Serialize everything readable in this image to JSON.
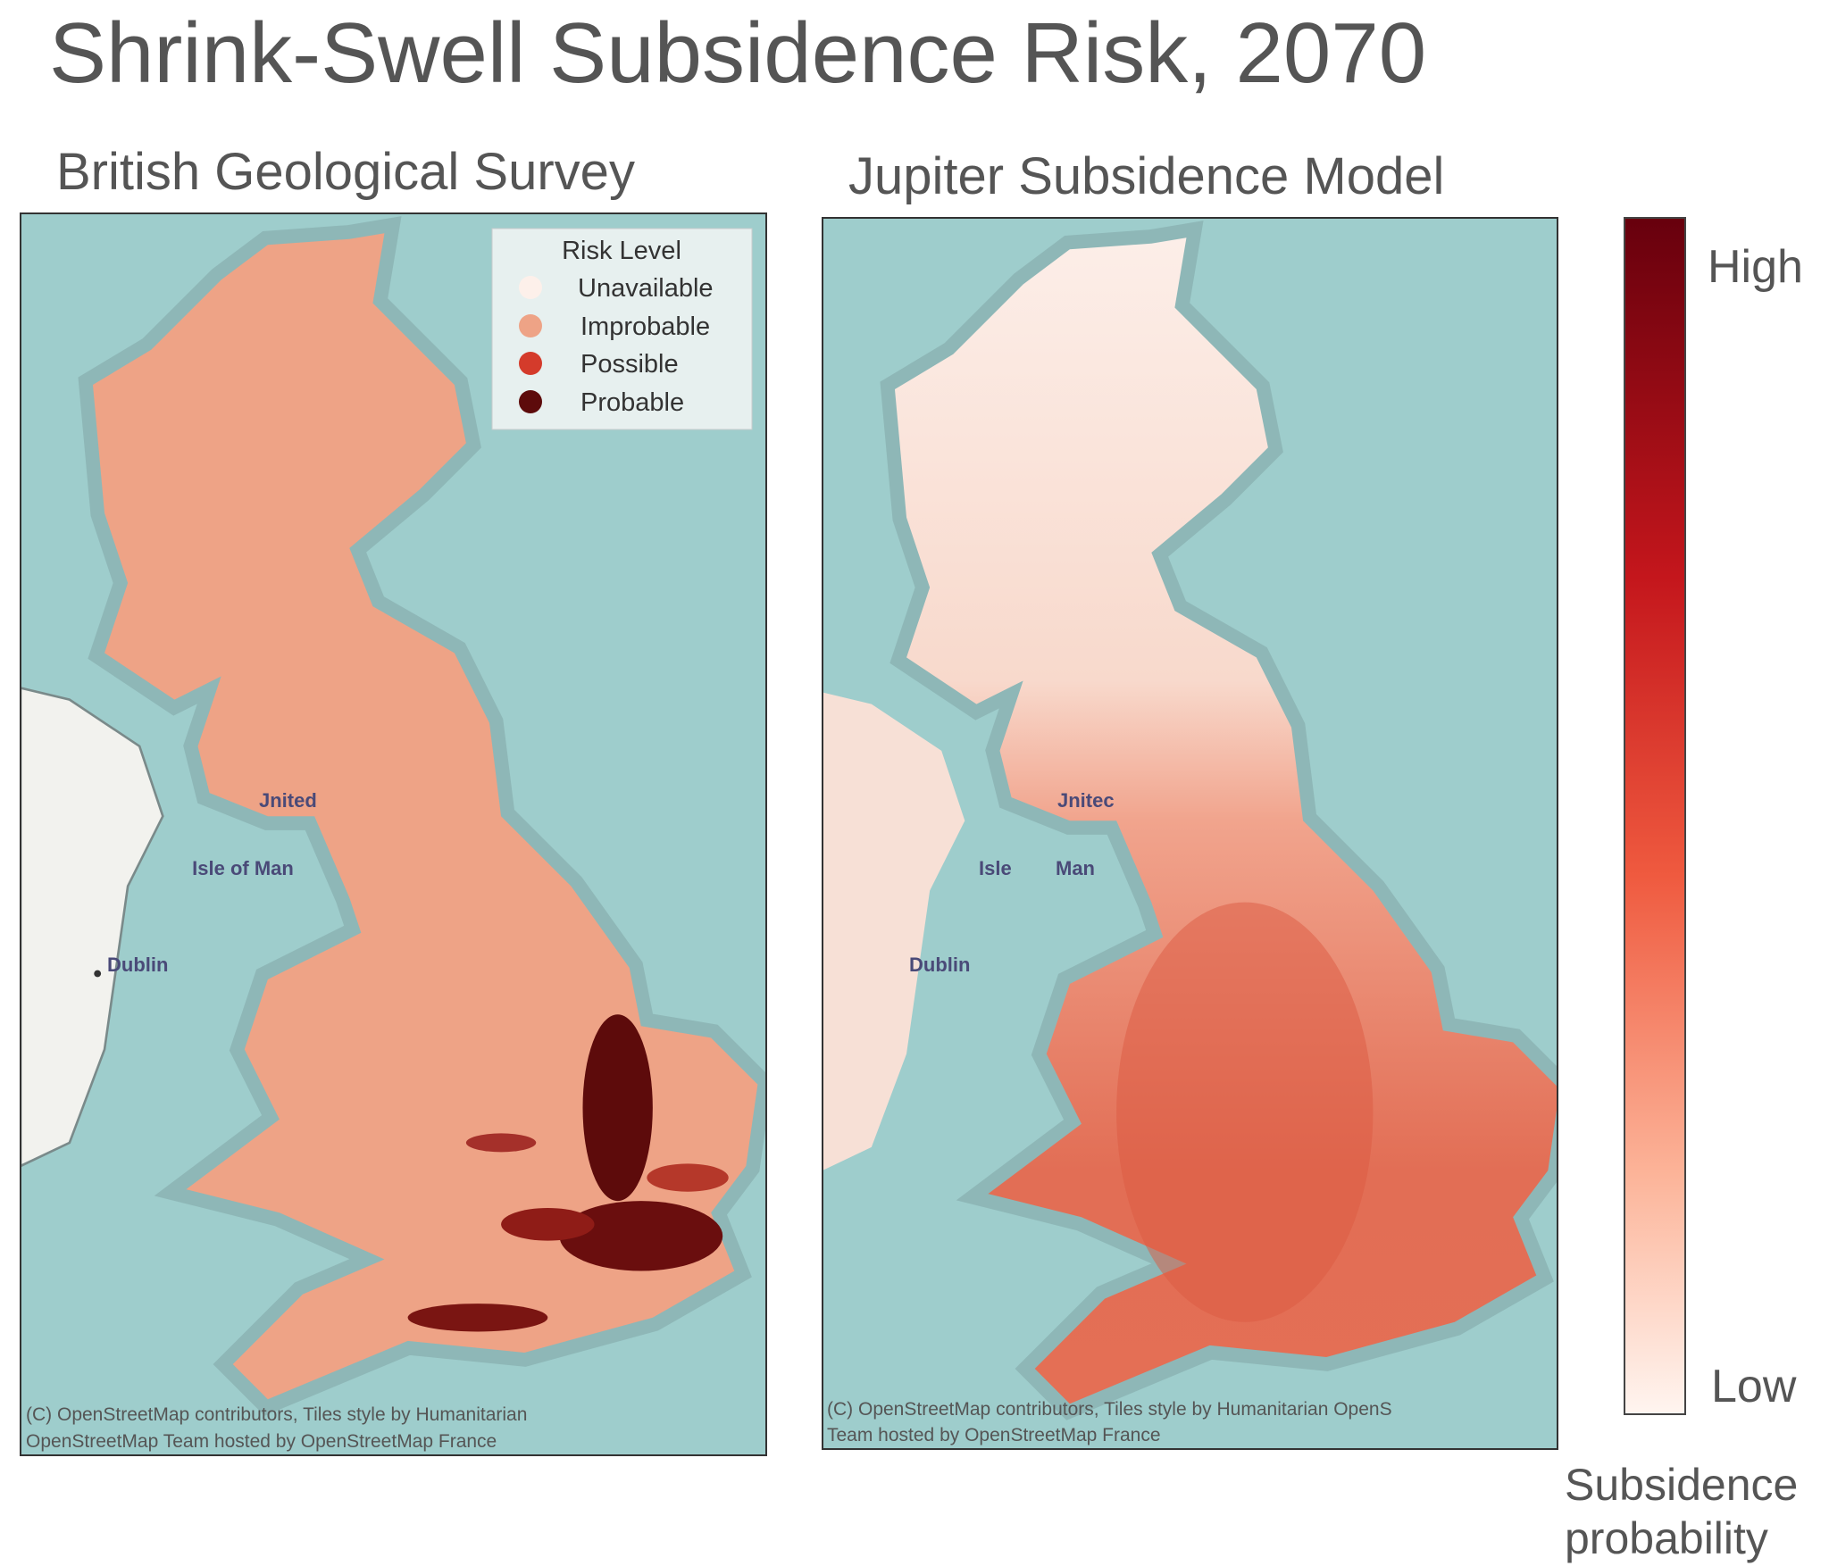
{
  "title": "Shrink-Swell Subsidence Risk, 2070",
  "panels": [
    {
      "title": "British Geological Survey",
      "legend": {
        "title": "Risk Level",
        "items": [
          "Unavailable",
          "Improbable",
          "Possible",
          "Probable"
        ]
      },
      "map_labels": [
        "Jnited",
        "Isle of Man",
        "Dublin"
      ],
      "attribution": [
        "(C) OpenStreetMap contributors, Tiles style by Humanitarian",
        "OpenStreetMap Team hosted by OpenStreetMap France"
      ]
    },
    {
      "title": "Jupiter Subsidence Model",
      "map_labels": [
        "Jnitec",
        "Isle",
        "Man",
        "Dublin"
      ],
      "attribution": [
        "(C) OpenStreetMap contributors, Tiles style by Humanitarian OpenS",
        "Team hosted by OpenStreetMap France"
      ]
    }
  ],
  "colorbar": {
    "high": "High",
    "low": "Low",
    "label": [
      "Subsidence",
      "probability"
    ]
  }
}
